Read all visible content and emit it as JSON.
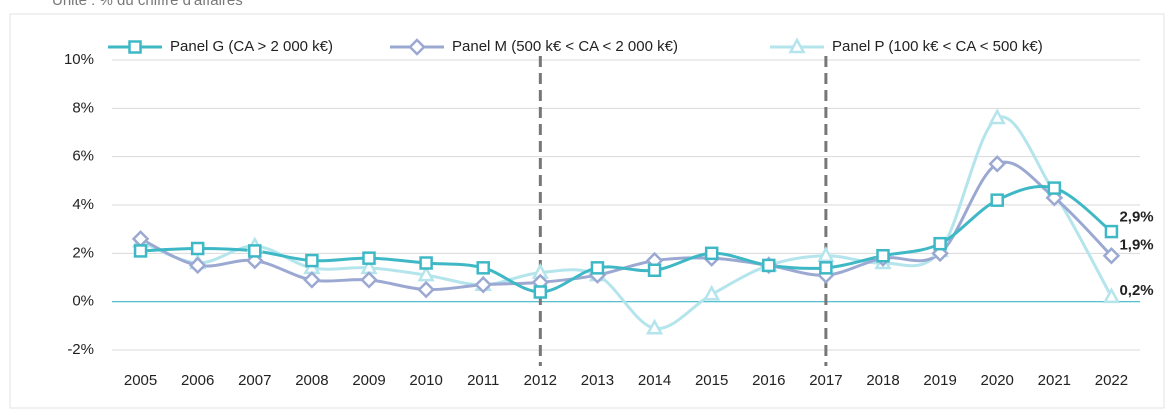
{
  "chart_data": {
    "type": "line",
    "subtitle": "Unité : % du chiffre d'affaires",
    "categories": [
      "2005",
      "2006",
      "2007",
      "2008",
      "2009",
      "2010",
      "2011",
      "2012",
      "2013",
      "2014",
      "2015",
      "2016",
      "2017",
      "2018",
      "2019",
      "2020",
      "2021",
      "2022"
    ],
    "series": [
      {
        "name": "Panel G (CA > 2 000 k€)",
        "color": "#3fb8c6",
        "marker": "square",
        "values": [
          2.1,
          2.2,
          2.1,
          1.7,
          1.8,
          1.6,
          1.4,
          0.4,
          1.4,
          1.3,
          2.0,
          1.5,
          1.4,
          1.9,
          2.4,
          4.2,
          4.7,
          2.9
        ],
        "value_labels": [
          null,
          null,
          null,
          null,
          null,
          null,
          null,
          null,
          null,
          null,
          null,
          null,
          null,
          null,
          null,
          null,
          null,
          "2,9%"
        ]
      },
      {
        "name": "Panel M (500 k€ < CA < 2 000 k€)",
        "color": "#9ba9d2",
        "marker": "diamond",
        "values": [
          2.6,
          1.5,
          1.7,
          0.9,
          0.9,
          0.5,
          0.7,
          0.8,
          1.1,
          1.7,
          1.8,
          1.5,
          1.1,
          1.8,
          2.0,
          5.7,
          4.3,
          1.9
        ],
        "value_labels": [
          null,
          null,
          null,
          null,
          null,
          null,
          null,
          null,
          null,
          null,
          null,
          null,
          null,
          null,
          null,
          null,
          null,
          "1,9%"
        ]
      },
      {
        "name": "Panel P (100 k€ < CA < 500 k€)",
        "color": "#b4e4ec",
        "marker": "triangle",
        "values": [
          2.5,
          1.6,
          2.3,
          1.4,
          1.4,
          1.1,
          0.7,
          1.2,
          1.1,
          -1.1,
          0.3,
          1.5,
          1.9,
          1.6,
          2.1,
          7.6,
          4.5,
          0.2
        ],
        "value_labels": [
          null,
          null,
          null,
          null,
          null,
          null,
          null,
          null,
          null,
          null,
          null,
          null,
          null,
          null,
          null,
          null,
          null,
          "0,2%"
        ]
      }
    ],
    "ylim": [
      -2,
      10
    ],
    "yticks": [
      {
        "value": -2,
        "label": "-2%"
      },
      {
        "value": 0,
        "label": "0%"
      },
      {
        "value": 2,
        "label": "2%"
      },
      {
        "value": 4,
        "label": "4%"
      },
      {
        "value": 6,
        "label": "6%"
      },
      {
        "value": 8,
        "label": "8%"
      },
      {
        "value": 10,
        "label": "10%"
      }
    ],
    "grid": true,
    "smooth": true,
    "dashed_verticals": [
      "2012",
      "2017"
    ],
    "legend": "top"
  }
}
